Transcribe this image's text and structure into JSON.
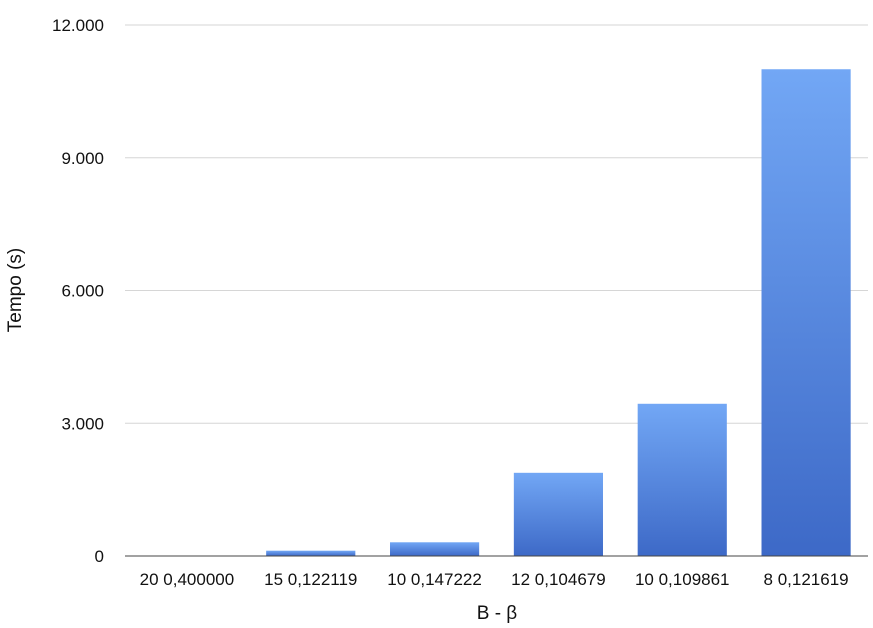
{
  "chart_data": {
    "type": "bar",
    "categories": [
      "20 0,400000",
      "15 0,122119",
      "10 0,147222",
      "12 0,104679",
      "10 0,109861",
      "8 0,121619"
    ],
    "values": [
      10,
      120,
      310,
      1880,
      3440,
      11000
    ],
    "xlabel": "B - β",
    "ylabel": "Tempo (s)",
    "ylim": [
      0,
      12000
    ],
    "yticks": [
      0,
      3000,
      6000,
      9000,
      12000
    ],
    "ytick_labels": [
      "0",
      "3.000",
      "6.000",
      "9.000",
      "12.000"
    ],
    "grid": true,
    "legend": "none",
    "colors": {
      "bar_top": "#72a7f5",
      "bar_bottom": "#3d69c7",
      "grid": "#d6d6d6"
    }
  }
}
